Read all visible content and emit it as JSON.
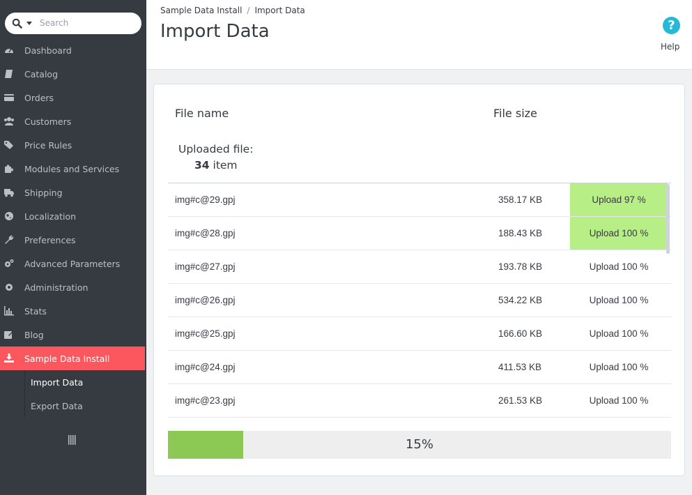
{
  "search": {
    "placeholder": "Search"
  },
  "sidebar": {
    "items": [
      {
        "label": "Dashboard",
        "icon": "dashboard-icon"
      },
      {
        "label": "Catalog",
        "icon": "book-icon"
      },
      {
        "label": "Orders",
        "icon": "credit-card-icon"
      },
      {
        "label": "Customers",
        "icon": "users-icon"
      },
      {
        "label": "Price Rules",
        "icon": "tags-icon"
      },
      {
        "label": "Modules and Services",
        "icon": "puzzle-icon"
      },
      {
        "label": "Shipping",
        "icon": "truck-icon"
      },
      {
        "label": "Localization",
        "icon": "globe-icon"
      },
      {
        "label": "Preferences",
        "icon": "wrench-icon"
      },
      {
        "label": "Advanced Parameters",
        "icon": "cogs-icon"
      },
      {
        "label": "Administration",
        "icon": "gear-icon"
      },
      {
        "label": "Stats",
        "icon": "bar-chart-icon"
      },
      {
        "label": "Blog",
        "icon": "edit-icon"
      },
      {
        "label": "Sample Data Install",
        "icon": "download-icon"
      }
    ],
    "subitems": [
      {
        "label": "Import Data"
      },
      {
        "label": "Export Data"
      }
    ]
  },
  "header": {
    "breadcrumb": [
      "Sample Data Install",
      "Import Data"
    ],
    "title": "Import Data",
    "help_label": "Help"
  },
  "table": {
    "col_name": "File name",
    "col_size": "File size",
    "uploaded_label": "Uploaded file:",
    "uploaded_count": "34",
    "uploaded_unit": "item",
    "rows": [
      {
        "name": "img#c@29.gpj",
        "size": "358.17 KB",
        "status": "Upload 97 %"
      },
      {
        "name": "img#c@28.gpj",
        "size": "188.43 KB",
        "status": "Upload 100 %"
      },
      {
        "name": "img#c@27.gpj",
        "size": "193.78 KB",
        "status": "Upload 100 %"
      },
      {
        "name": "img#c@26.gpj",
        "size": "534.22 KB",
        "status": "Upload 100 %"
      },
      {
        "name": "img#c@25.gpj",
        "size": "166.60 KB",
        "status": "Upload 100 %"
      },
      {
        "name": "img#c@24.gpj",
        "size": "411.53 KB",
        "status": "Upload 100 %"
      },
      {
        "name": "img#c@23.gpj",
        "size": "261.53 KB",
        "status": "Upload 100 %"
      }
    ]
  },
  "progress": {
    "label": "15%",
    "fraction": 0.15
  },
  "colors": {
    "accent_active": "#fc575e",
    "progress": "#8bc954",
    "highlight": "#b8ee86",
    "help": "#25b9d7"
  }
}
